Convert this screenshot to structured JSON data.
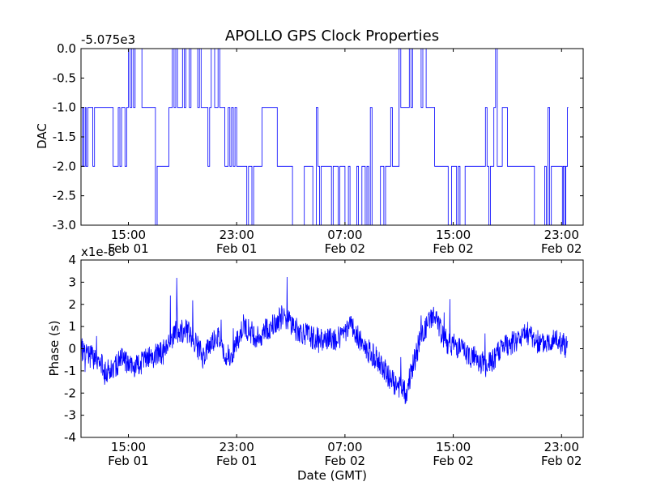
{
  "chart_data": [
    {
      "type": "line",
      "title": "APOLLO GPS Clock Properties",
      "offset_label": "-5.075e3",
      "xlabel": "",
      "ylabel": "DAC",
      "ylim": [
        -3.0,
        0.0
      ],
      "xlim_hours": [
        11.5,
        24.6
      ],
      "xticks": [
        {
          "label": [
            "15:00",
            "Feb 01"
          ]
        },
        {
          "label": [
            "23:00",
            "Feb 01"
          ]
        },
        {
          "label": [
            "07:00",
            "Feb 02"
          ]
        },
        {
          "label": [
            "15:00",
            "Feb 02"
          ]
        },
        {
          "label": [
            "23:00",
            "Feb 02"
          ]
        }
      ],
      "yticks": [
        {
          "value": 0.0,
          "label": "0.0"
        },
        {
          "value": -0.5,
          "label": "-0.5"
        },
        {
          "value": -1.0,
          "label": "-1.0"
        },
        {
          "value": -1.5,
          "label": "-1.5"
        },
        {
          "value": -2.0,
          "label": "-2.0"
        },
        {
          "value": -2.5,
          "label": "-2.5"
        },
        {
          "value": -3.0,
          "label": "-3.0"
        }
      ],
      "series": [
        {
          "color": "#0000ff",
          "x": [
            "Feb 01 11:30",
            "Feb 01 12:00",
            "Feb 01 13:00",
            "Feb 01 14:00",
            "Feb 01 15:00",
            "Feb 01 16:00",
            "Feb 01 17:00",
            "Feb 01 18:00",
            "Feb 01 19:00",
            "Feb 01 20:00",
            "Feb 01 21:00",
            "Feb 01 22:00",
            "Feb 01 23:00",
            "Feb 02 00:00",
            "Feb 02 01:00",
            "Feb 02 02:00",
            "Feb 02 03:00",
            "Feb 02 04:00",
            "Feb 02 05:00",
            "Feb 02 06:00",
            "Feb 02 07:00",
            "Feb 02 08:00",
            "Feb 02 09:00",
            "Feb 02 10:00",
            "Feb 02 11:00",
            "Feb 02 12:00",
            "Feb 02 13:00",
            "Feb 02 14:00",
            "Feb 02 15:00",
            "Feb 02 16:00",
            "Feb 02 17:00",
            "Feb 02 18:00",
            "Feb 02 19:00",
            "Feb 02 20:00",
            "Feb 02 21:00",
            "Feb 02 22:00",
            "Feb 02 23:00",
            "Feb 02 23:30"
          ],
          "values": [
            -2.0,
            -1.0,
            -1.0,
            -1.0,
            -0.0,
            -1.0,
            -2.0,
            -1.0,
            -0.0,
            -1.0,
            -0.0,
            -1.0,
            -2.0,
            -2.0,
            -1.0,
            -2.0,
            -3.0,
            -2.0,
            -2.0,
            -2.0,
            -3.0,
            -2.0,
            -3.0,
            -2.0,
            -1.0,
            -0.0,
            -1.0,
            -2.0,
            -3.0,
            -2.0,
            -2.0,
            -1.0,
            -2.0,
            -2.0,
            -3.0,
            -2.0,
            -2.0,
            -3.0
          ]
        }
      ]
    },
    {
      "type": "line",
      "title": "",
      "offset_label": "x1e-8",
      "xlabel": "Date (GMT)",
      "ylabel": "Phase (s)",
      "ylim": [
        -4,
        4
      ],
      "xlim_hours": [
        11.5,
        24.6
      ],
      "xticks": [
        {
          "label": [
            "15:00",
            "Feb 01"
          ]
        },
        {
          "label": [
            "23:00",
            "Feb 01"
          ]
        },
        {
          "label": [
            "07:00",
            "Feb 02"
          ]
        },
        {
          "label": [
            "15:00",
            "Feb 02"
          ]
        },
        {
          "label": [
            "23:00",
            "Feb 02"
          ]
        }
      ],
      "yticks": [
        {
          "value": 4,
          "label": "4"
        },
        {
          "value": 3,
          "label": "3"
        },
        {
          "value": 2,
          "label": "2"
        },
        {
          "value": 1,
          "label": "1"
        },
        {
          "value": 0,
          "label": "0"
        },
        {
          "value": -1,
          "label": "-1"
        },
        {
          "value": -2,
          "label": "-2"
        },
        {
          "value": -3,
          "label": "-3"
        },
        {
          "value": -4,
          "label": "-4"
        }
      ],
      "series": [
        {
          "color": "#0000ff",
          "x": [
            "Feb 01 11:30",
            "Feb 01 12:30",
            "Feb 01 13:30",
            "Feb 01 14:30",
            "Feb 01 15:30",
            "Feb 01 16:30",
            "Feb 01 17:30",
            "Feb 01 18:30",
            "Feb 01 19:30",
            "Feb 01 20:30",
            "Feb 01 21:30",
            "Feb 01 22:30",
            "Feb 01 23:30",
            "Feb 02 00:30",
            "Feb 02 01:30",
            "Feb 02 02:30",
            "Feb 02 03:30",
            "Feb 02 04:30",
            "Feb 02 05:30",
            "Feb 02 06:30",
            "Feb 02 07:30",
            "Feb 02 08:30",
            "Feb 02 09:30",
            "Feb 02 10:30",
            "Feb 02 11:30",
            "Feb 02 12:30",
            "Feb 02 13:30",
            "Feb 02 14:30",
            "Feb 02 15:30",
            "Feb 02 16:30",
            "Feb 02 17:30",
            "Feb 02 18:30",
            "Feb 02 19:30",
            "Feb 02 20:30",
            "Feb 02 21:30",
            "Feb 02 22:30",
            "Feb 02 23:30"
          ],
          "values": [
            0.0,
            -0.5,
            -1.0,
            -0.5,
            -0.8,
            -0.4,
            -0.2,
            0.8,
            0.8,
            -0.4,
            0.6,
            -0.5,
            1.0,
            0.5,
            1.0,
            1.5,
            0.8,
            0.5,
            0.4,
            0.5,
            1.0,
            0.0,
            -0.5,
            -1.5,
            -2.0,
            0.3,
            1.5,
            0.3,
            0.0,
            -0.4,
            -0.8,
            0.0,
            0.3,
            0.7,
            0.2,
            0.5,
            0.0
          ]
        }
      ]
    }
  ]
}
